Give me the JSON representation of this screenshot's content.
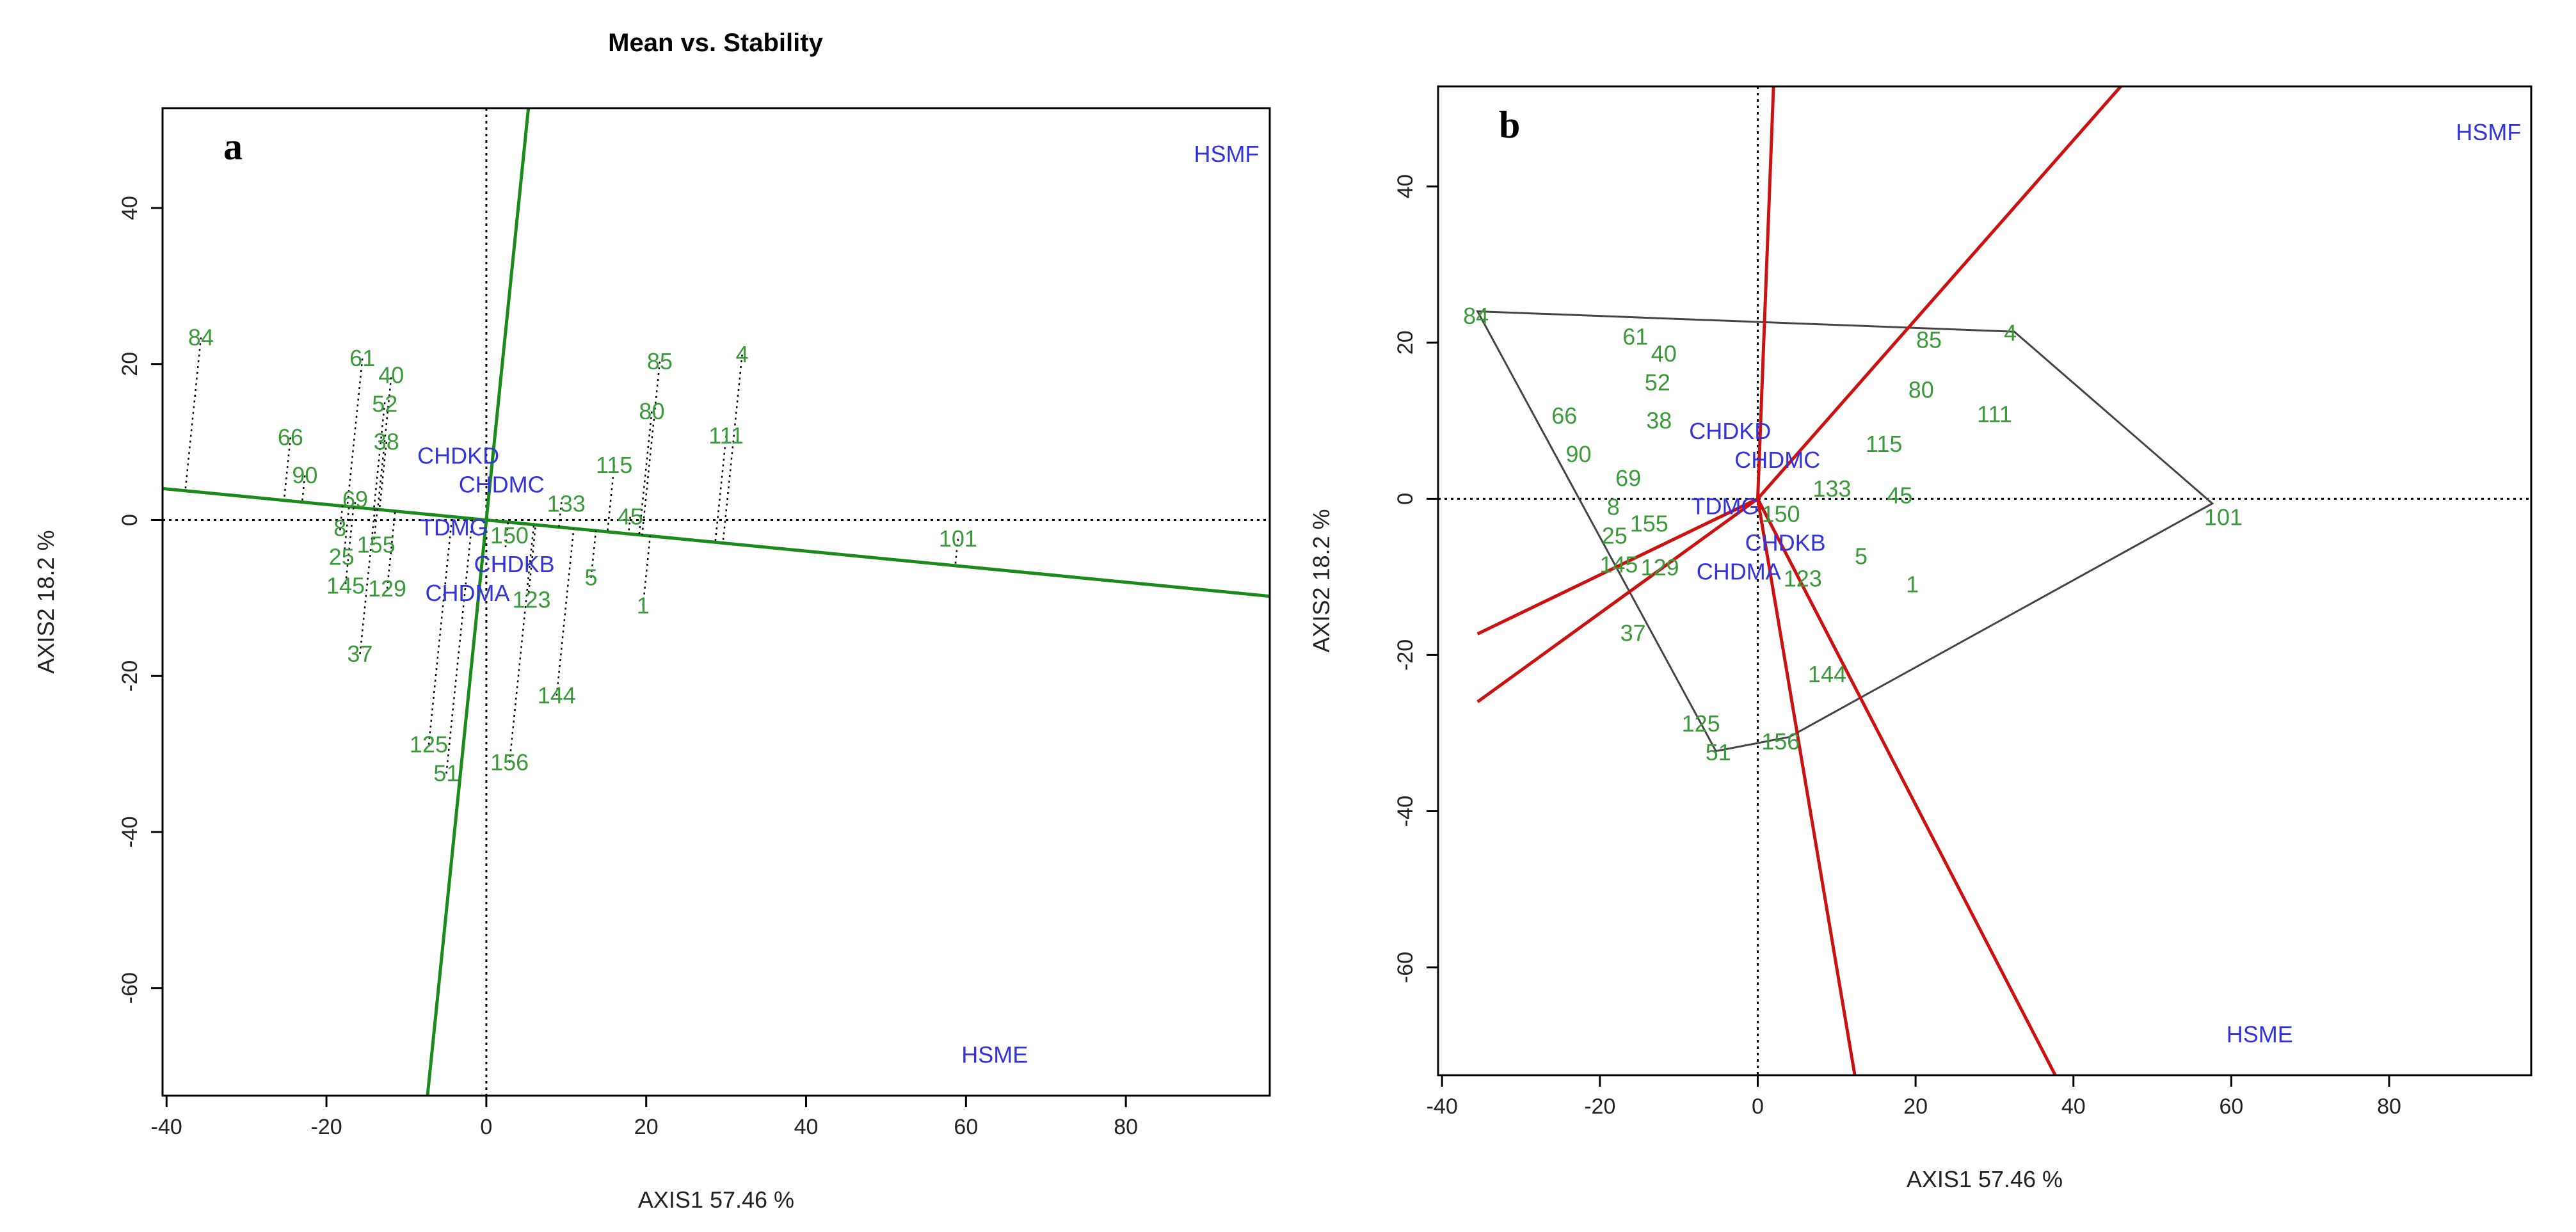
{
  "chart_data": [
    {
      "type": "scatter",
      "panel_label": "a",
      "title": "Mean vs. Stability",
      "xlabel": "AXIS1 57.46 %",
      "ylabel": "AXIS2 18.2 %",
      "xlim": [
        -40.5,
        98
      ],
      "ylim": [
        -73.8,
        52.8
      ],
      "xticks": [
        -40,
        -20,
        0,
        20,
        40,
        60,
        80
      ],
      "yticks": [
        -60,
        -40,
        -20,
        0,
        20,
        40
      ],
      "atc_slope": -0.0997,
      "line_color": "#1a8a1a",
      "genotypes": [
        {
          "label": "84",
          "x": -35.7,
          "y": 23.4
        },
        {
          "label": "61",
          "x": -15.5,
          "y": 20.7
        },
        {
          "label": "40",
          "x": -11.9,
          "y": 18.3
        },
        {
          "label": "52",
          "x": -12.7,
          "y": 15.1
        },
        {
          "label": "66",
          "x": -24.5,
          "y": 10.6
        },
        {
          "label": "38",
          "x": -12.5,
          "y": 10.0
        },
        {
          "label": "90",
          "x": -22.7,
          "y": 5.7
        },
        {
          "label": "69",
          "x": -16.4,
          "y": 2.3
        },
        {
          "label": "8",
          "x": -18.3,
          "y": -1.3
        },
        {
          "label": "155",
          "x": -14.1,
          "y": -3.2
        },
        {
          "label": "25",
          "x": -17.8,
          "y": -4.5
        },
        {
          "label": "145",
          "x": -17.6,
          "y": -8.2
        },
        {
          "label": "129",
          "x": -12.4,
          "y": -8.8
        },
        {
          "label": "37",
          "x": -15.8,
          "y": -17.2
        },
        {
          "label": "125",
          "x": -7.2,
          "y": -28.8
        },
        {
          "label": "51",
          "x": -5.0,
          "y": -32.5
        },
        {
          "label": "156",
          "x": 2.9,
          "y": -31.1
        },
        {
          "label": "144",
          "x": 8.8,
          "y": -22.5
        },
        {
          "label": "150",
          "x": 2.4,
          "y": -3.5
        },
        {
          "label": "123",
          "x": 5.3,
          "y": -9.3
        },
        {
          "label": "5",
          "x": 13.1,
          "y": -7.4
        },
        {
          "label": "1",
          "x": 19.6,
          "y": -11.0
        },
        {
          "label": "45",
          "x": 18.0,
          "y": 0.4
        },
        {
          "label": "133",
          "x": 9.4,
          "y": 2.3
        },
        {
          "label": "115",
          "x": 16.0,
          "y": 7.0
        },
        {
          "label": "85",
          "x": 21.7,
          "y": 20.3
        },
        {
          "label": "80",
          "x": 20.7,
          "y": 13.9
        },
        {
          "label": "111",
          "x": 30.0,
          "y": 10.8
        },
        {
          "label": "4",
          "x": 32.0,
          "y": 21.2
        },
        {
          "label": "101",
          "x": 59.0,
          "y": -2.4
        }
      ],
      "environments": [
        {
          "label": "CHDKD",
          "x": -3.5,
          "y": 7.0
        },
        {
          "label": "TDMG",
          "x": -3.6,
          "y": -1.0
        },
        {
          "label": "CHDMC",
          "x": 2.5,
          "y": 5.5
        },
        {
          "label": "CHDMA",
          "x": -2.0,
          "y": -7.0
        },
        {
          "label": "CHDKB",
          "x": 3.5,
          "y": -7.5
        },
        {
          "label": "HSMF",
          "x": 92.6,
          "y": 46.9
        },
        {
          "label": "HSME",
          "x": 63.6,
          "y": -68.6
        }
      ]
    },
    {
      "type": "scatter",
      "panel_label": "b",
      "title": "",
      "xlabel": "AXIS1 57.46 %",
      "ylabel": "AXIS2 18.2 %",
      "xlim": [
        -40.5,
        98
      ],
      "ylim": [
        -73.8,
        52.8
      ],
      "xticks": [
        -40,
        -20,
        0,
        20,
        40,
        60,
        80
      ],
      "yticks": [
        -60,
        -40,
        -20,
        0,
        20,
        40
      ],
      "hull_color": "#444444",
      "sector_color": "#cc1111",
      "hull": [
        [
          -35.5,
          24.0
        ],
        [
          32.5,
          21.4
        ],
        [
          57.6,
          -0.6
        ],
        [
          4.0,
          -30.5
        ],
        [
          -5.3,
          -32.3
        ]
      ],
      "sector_rays": [
        [
          2.0,
          52.8
        ],
        [
          46.0,
          52.8
        ],
        [
          -35.5,
          -17.3
        ],
        [
          -35.5,
          -26.0
        ],
        [
          12.3,
          -73.8
        ],
        [
          37.7,
          -73.8
        ]
      ],
      "genotypes_ref": "same as panel a",
      "environments_ref": "same as panel a"
    }
  ]
}
